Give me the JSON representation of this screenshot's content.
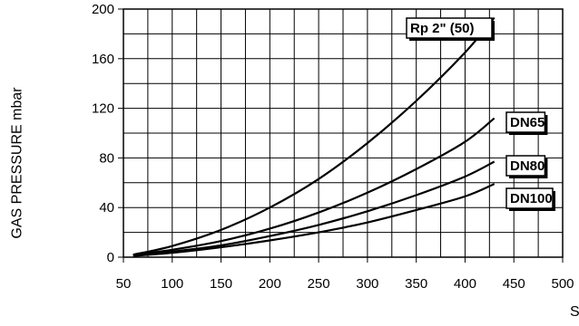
{
  "chart_data": {
    "type": "line",
    "title": "",
    "ylabel": "GAS PRESSURE mbar",
    "xlabel": "S",
    "xlim": [
      50,
      500
    ],
    "ylim": [
      0,
      200
    ],
    "x_ticks": [
      50,
      100,
      150,
      200,
      250,
      300,
      350,
      400,
      450,
      500
    ],
    "y_ticks": [
      0,
      40,
      80,
      120,
      160,
      200
    ],
    "grid": true,
    "series": [
      {
        "name": "Rp 2\" (50)",
        "x": [
          60,
          100,
          150,
          200,
          250,
          300,
          350,
          400,
          430
        ],
        "y": [
          2,
          9,
          22,
          40,
          63,
          92,
          126,
          165,
          193
        ]
      },
      {
        "name": "DN65",
        "x": [
          60,
          100,
          150,
          200,
          250,
          300,
          350,
          400,
          430
        ],
        "y": [
          2,
          6,
          13,
          23,
          36,
          52,
          71,
          93,
          112
        ]
      },
      {
        "name": "DN80",
        "x": [
          60,
          100,
          150,
          200,
          250,
          300,
          350,
          400,
          430
        ],
        "y": [
          1.5,
          4.5,
          9.5,
          17,
          26,
          37,
          50,
          65,
          77
        ]
      },
      {
        "name": "DN100",
        "x": [
          60,
          100,
          150,
          200,
          250,
          300,
          350,
          400,
          430
        ],
        "y": [
          1,
          3.5,
          8,
          13.5,
          20,
          28,
          38,
          49,
          59
        ]
      }
    ]
  }
}
